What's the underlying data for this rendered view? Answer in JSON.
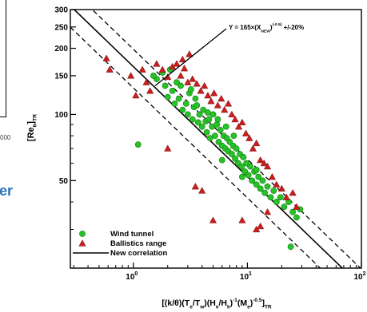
{
  "fragment": {
    "tick_label": "000",
    "text": "er"
  },
  "chart_data": {
    "type": "scatter",
    "x_scale": "log",
    "y_scale": "log",
    "xlim": [
      0.28,
      100
    ],
    "ylim": [
      20,
      300
    ],
    "xlabel_parts": [
      "[(k/",
      "θ",
      ")(T",
      "e",
      "/T",
      "w",
      ")(H",
      "e",
      "/H",
      "k",
      ")",
      "-1",
      "(M",
      "e",
      ")",
      "-0.5",
      "]",
      "TR"
    ],
    "ylabel_parts": [
      "[Re",
      "θ",
      "]",
      "TR"
    ],
    "x_ticks": [
      {
        "value": 1,
        "base": "10",
        "exp": "0"
      },
      {
        "value": 10,
        "base": "10",
        "exp": "1"
      },
      {
        "value": 100,
        "base": "10",
        "exp": "2"
      }
    ],
    "y_ticks": [
      {
        "value": 50,
        "label": "50"
      },
      {
        "value": 100,
        "label": "100"
      },
      {
        "value": 150,
        "label": "150"
      },
      {
        "value": 200,
        "label": "200"
      },
      {
        "value": 250,
        "label": "250"
      },
      {
        "value": 300,
        "label": "300"
      }
    ],
    "annotation_parts": [
      "Y = 165×(X",
      "NEW",
      ")",
      "(-0.5)",
      " +/-20%"
    ],
    "series": [
      {
        "name": "Wind tunnel",
        "marker": "circle",
        "color": "#27c227",
        "points": [
          [
            1.6,
            145
          ],
          [
            1.9,
            135
          ],
          [
            2.0,
            120
          ],
          [
            2.2,
            128
          ],
          [
            2.3,
            112
          ],
          [
            2.5,
            118
          ],
          [
            2.6,
            135
          ],
          [
            2.7,
            105
          ],
          [
            2.9,
            112
          ],
          [
            3.0,
            100
          ],
          [
            3.1,
            125
          ],
          [
            3.3,
            95
          ],
          [
            3.4,
            108
          ],
          [
            3.5,
            118
          ],
          [
            3.7,
            92
          ],
          [
            3.8,
            100
          ],
          [
            4.0,
            88
          ],
          [
            4.1,
            105
          ],
          [
            4.3,
            93
          ],
          [
            4.4,
            83
          ],
          [
            4.6,
            95
          ],
          [
            4.7,
            78
          ],
          [
            4.9,
            88
          ],
          [
            5.0,
            100
          ],
          [
            5.2,
            80
          ],
          [
            5.4,
            90
          ],
          [
            5.6,
            75
          ],
          [
            5.8,
            85
          ],
          [
            6.0,
            72
          ],
          [
            6.2,
            80
          ],
          [
            6.4,
            70
          ],
          [
            6.6,
            78
          ],
          [
            6.8,
            68
          ],
          [
            7.0,
            75
          ],
          [
            7.3,
            66
          ],
          [
            7.5,
            72
          ],
          [
            7.8,
            63
          ],
          [
            8.0,
            70
          ],
          [
            8.3,
            60
          ],
          [
            8.6,
            66
          ],
          [
            8.9,
            58
          ],
          [
            9.2,
            64
          ],
          [
            9.5,
            55
          ],
          [
            9.8,
            60
          ],
          [
            10.2,
            53
          ],
          [
            10.6,
            58
          ],
          [
            11.0,
            50
          ],
          [
            11.5,
            55
          ],
          [
            12.0,
            48
          ],
          [
            12.5,
            52
          ],
          [
            13.0,
            46
          ],
          [
            13.6,
            50
          ],
          [
            14.2,
            44
          ],
          [
            15.0,
            47
          ],
          [
            16.0,
            42
          ],
          [
            17.0,
            45
          ],
          [
            18.0,
            40
          ],
          [
            19.5,
            42
          ],
          [
            21.0,
            38
          ],
          [
            23.0,
            40
          ],
          [
            25.0,
            36
          ],
          [
            27.0,
            34
          ],
          [
            29.0,
            37
          ],
          [
            3.6,
            110
          ],
          [
            4.5,
            102
          ],
          [
            5.5,
            95
          ],
          [
            6.5,
            88
          ],
          [
            7.6,
            80
          ],
          [
            2.4,
            140
          ],
          [
            3.2,
            130
          ],
          [
            1.5,
            150
          ],
          [
            1.8,
            155
          ],
          [
            2.1,
            160
          ],
          [
            24.0,
            25
          ],
          [
            1.1,
            73
          ],
          [
            6.0,
            62
          ],
          [
            9.0,
            52
          ],
          [
            12.0,
            56
          ]
        ]
      },
      {
        "name": "Ballistics range",
        "marker": "triangle",
        "color": "#c81e1e",
        "points": [
          [
            0.58,
            180
          ],
          [
            0.62,
            160
          ],
          [
            0.95,
            150
          ],
          [
            1.05,
            122
          ],
          [
            1.2,
            160
          ],
          [
            1.3,
            140
          ],
          [
            1.4,
            128
          ],
          [
            1.6,
            170
          ],
          [
            1.8,
            160
          ],
          [
            2.0,
            148
          ],
          [
            2.2,
            165
          ],
          [
            2.4,
            170
          ],
          [
            2.6,
            150
          ],
          [
            2.8,
            162
          ],
          [
            3.0,
            140
          ],
          [
            3.3,
            145
          ],
          [
            3.6,
            138
          ],
          [
            3.9,
            128
          ],
          [
            4.2,
            135
          ],
          [
            4.5,
            122
          ],
          [
            4.8,
            115
          ],
          [
            5.1,
            125
          ],
          [
            5.5,
            110
          ],
          [
            5.9,
            118
          ],
          [
            6.3,
            105
          ],
          [
            6.8,
            112
          ],
          [
            7.3,
            100
          ],
          [
            7.8,
            95
          ],
          [
            8.4,
            88
          ],
          [
            9.0,
            92
          ],
          [
            9.7,
            82
          ],
          [
            10.4,
            78
          ],
          [
            11.2,
            70
          ],
          [
            12.0,
            74
          ],
          [
            13.0,
            62
          ],
          [
            14.0,
            60
          ],
          [
            15.0,
            58
          ],
          [
            16.5,
            52
          ],
          [
            18.0,
            48
          ],
          [
            20.0,
            46
          ],
          [
            22.0,
            42
          ],
          [
            25.0,
            44
          ],
          [
            27.0,
            38
          ],
          [
            2.0,
            70
          ],
          [
            3.5,
            47
          ],
          [
            4.0,
            45
          ],
          [
            5.0,
            33
          ],
          [
            9.0,
            33
          ],
          [
            12.0,
            30
          ],
          [
            13.0,
            31
          ],
          [
            15.0,
            36
          ],
          [
            2.7,
            178
          ],
          [
            3.1,
            188
          ]
        ]
      }
    ],
    "lines": [
      {
        "name": "New correlation",
        "coef": 165,
        "exponent": -0.5,
        "style": "solid"
      },
      {
        "name": "+20%",
        "coef": 198,
        "exponent": -0.5,
        "style": "dashed"
      },
      {
        "name": "-20%",
        "coef": 132,
        "exponent": -0.5,
        "style": "dashed"
      }
    ],
    "legend": {
      "position": "bottom-left",
      "entries": [
        "Wind tunnel",
        "Ballistics range",
        "New correlation"
      ]
    }
  }
}
